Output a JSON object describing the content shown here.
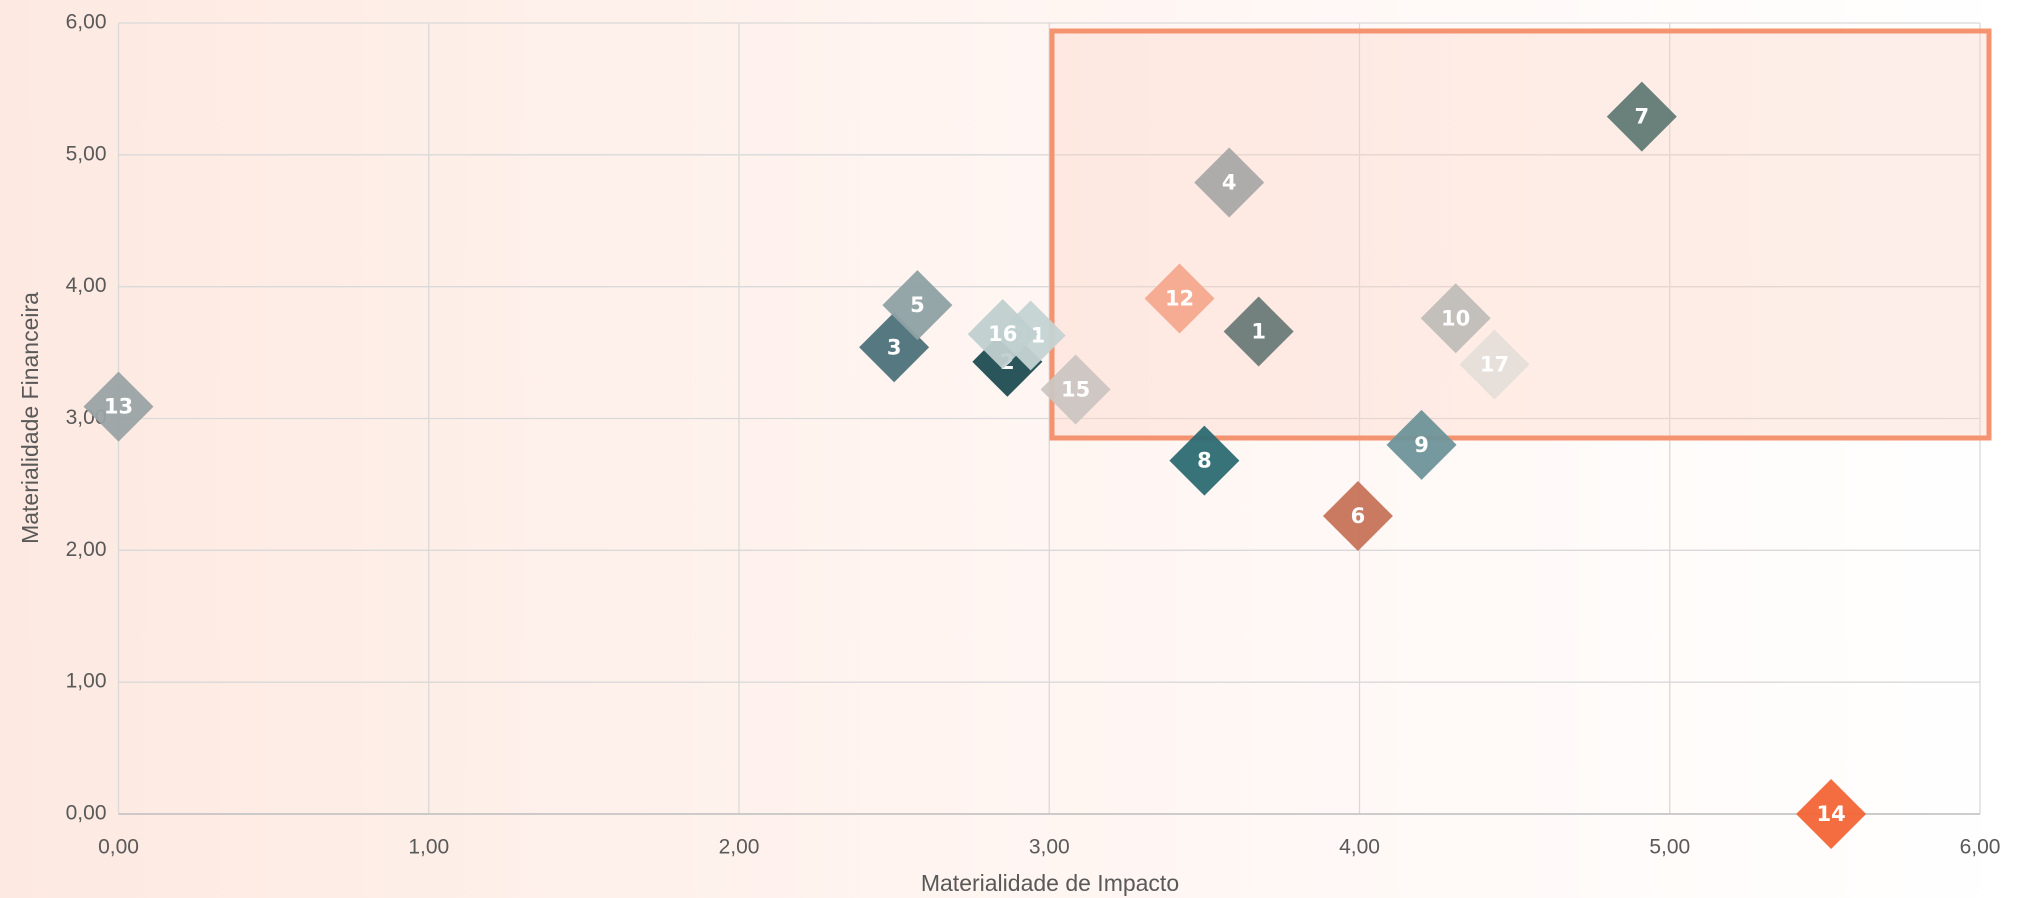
{
  "chart_data": {
    "type": "scatter",
    "xlabel": "Materialidade de Impacto",
    "ylabel": "Materialidade Financeira",
    "labels": [
      "1",
      "2",
      "3",
      "4",
      "5",
      "6",
      "7",
      "8",
      "9",
      "10",
      "11",
      "12",
      "13",
      "14",
      "15",
      "16",
      "17"
    ],
    "x": [
      3.675,
      2.865,
      2.5,
      3.58,
      2.575,
      3.995,
      4.91,
      3.5,
      4.2,
      4.31,
      2.94,
      3.42,
      0.0,
      5.52,
      3.085,
      2.85,
      4.435
    ],
    "y": [
      3.66,
      3.43,
      3.54,
      4.79,
      3.86,
      2.26,
      5.29,
      2.68,
      2.8,
      3.76,
      3.63,
      3.91,
      3.09,
      0.0,
      3.22,
      3.64,
      3.41
    ],
    "colors": [
      "#6b7b78",
      "#1e4c52",
      "#4d727a",
      "#a9a9a7",
      "#8fa1a4",
      "#c8735a",
      "#627a75",
      "#2d6b73",
      "#6e9499",
      "#c0bdb8",
      "#c5d3d3",
      "#f5a98e",
      "#9aa3a4",
      "#f26536",
      "#ccc5c1",
      "#c0cfcf",
      "#e6ded8"
    ],
    "xlim": [
      0,
      6
    ],
    "ylim": [
      0,
      6
    ],
    "xticks": [
      {
        "value": 0,
        "label": "0,00"
      },
      {
        "value": 1,
        "label": "1,00"
      },
      {
        "value": 2,
        "label": "2,00"
      },
      {
        "value": 3,
        "label": "3,00"
      },
      {
        "value": 4,
        "label": "4,00"
      },
      {
        "value": 5,
        "label": "5,00"
      },
      {
        "value": 6,
        "label": "6,00"
      }
    ],
    "yticks": [
      {
        "value": 0,
        "label": "0,00"
      },
      {
        "value": 1,
        "label": "1,00"
      },
      {
        "value": 2,
        "label": "2,00"
      },
      {
        "value": 3,
        "label": "3,00"
      },
      {
        "value": 4,
        "label": "4,00"
      },
      {
        "value": 5,
        "label": "5,00"
      },
      {
        "value": 6,
        "label": "6,00"
      }
    ],
    "grid": true
  }
}
